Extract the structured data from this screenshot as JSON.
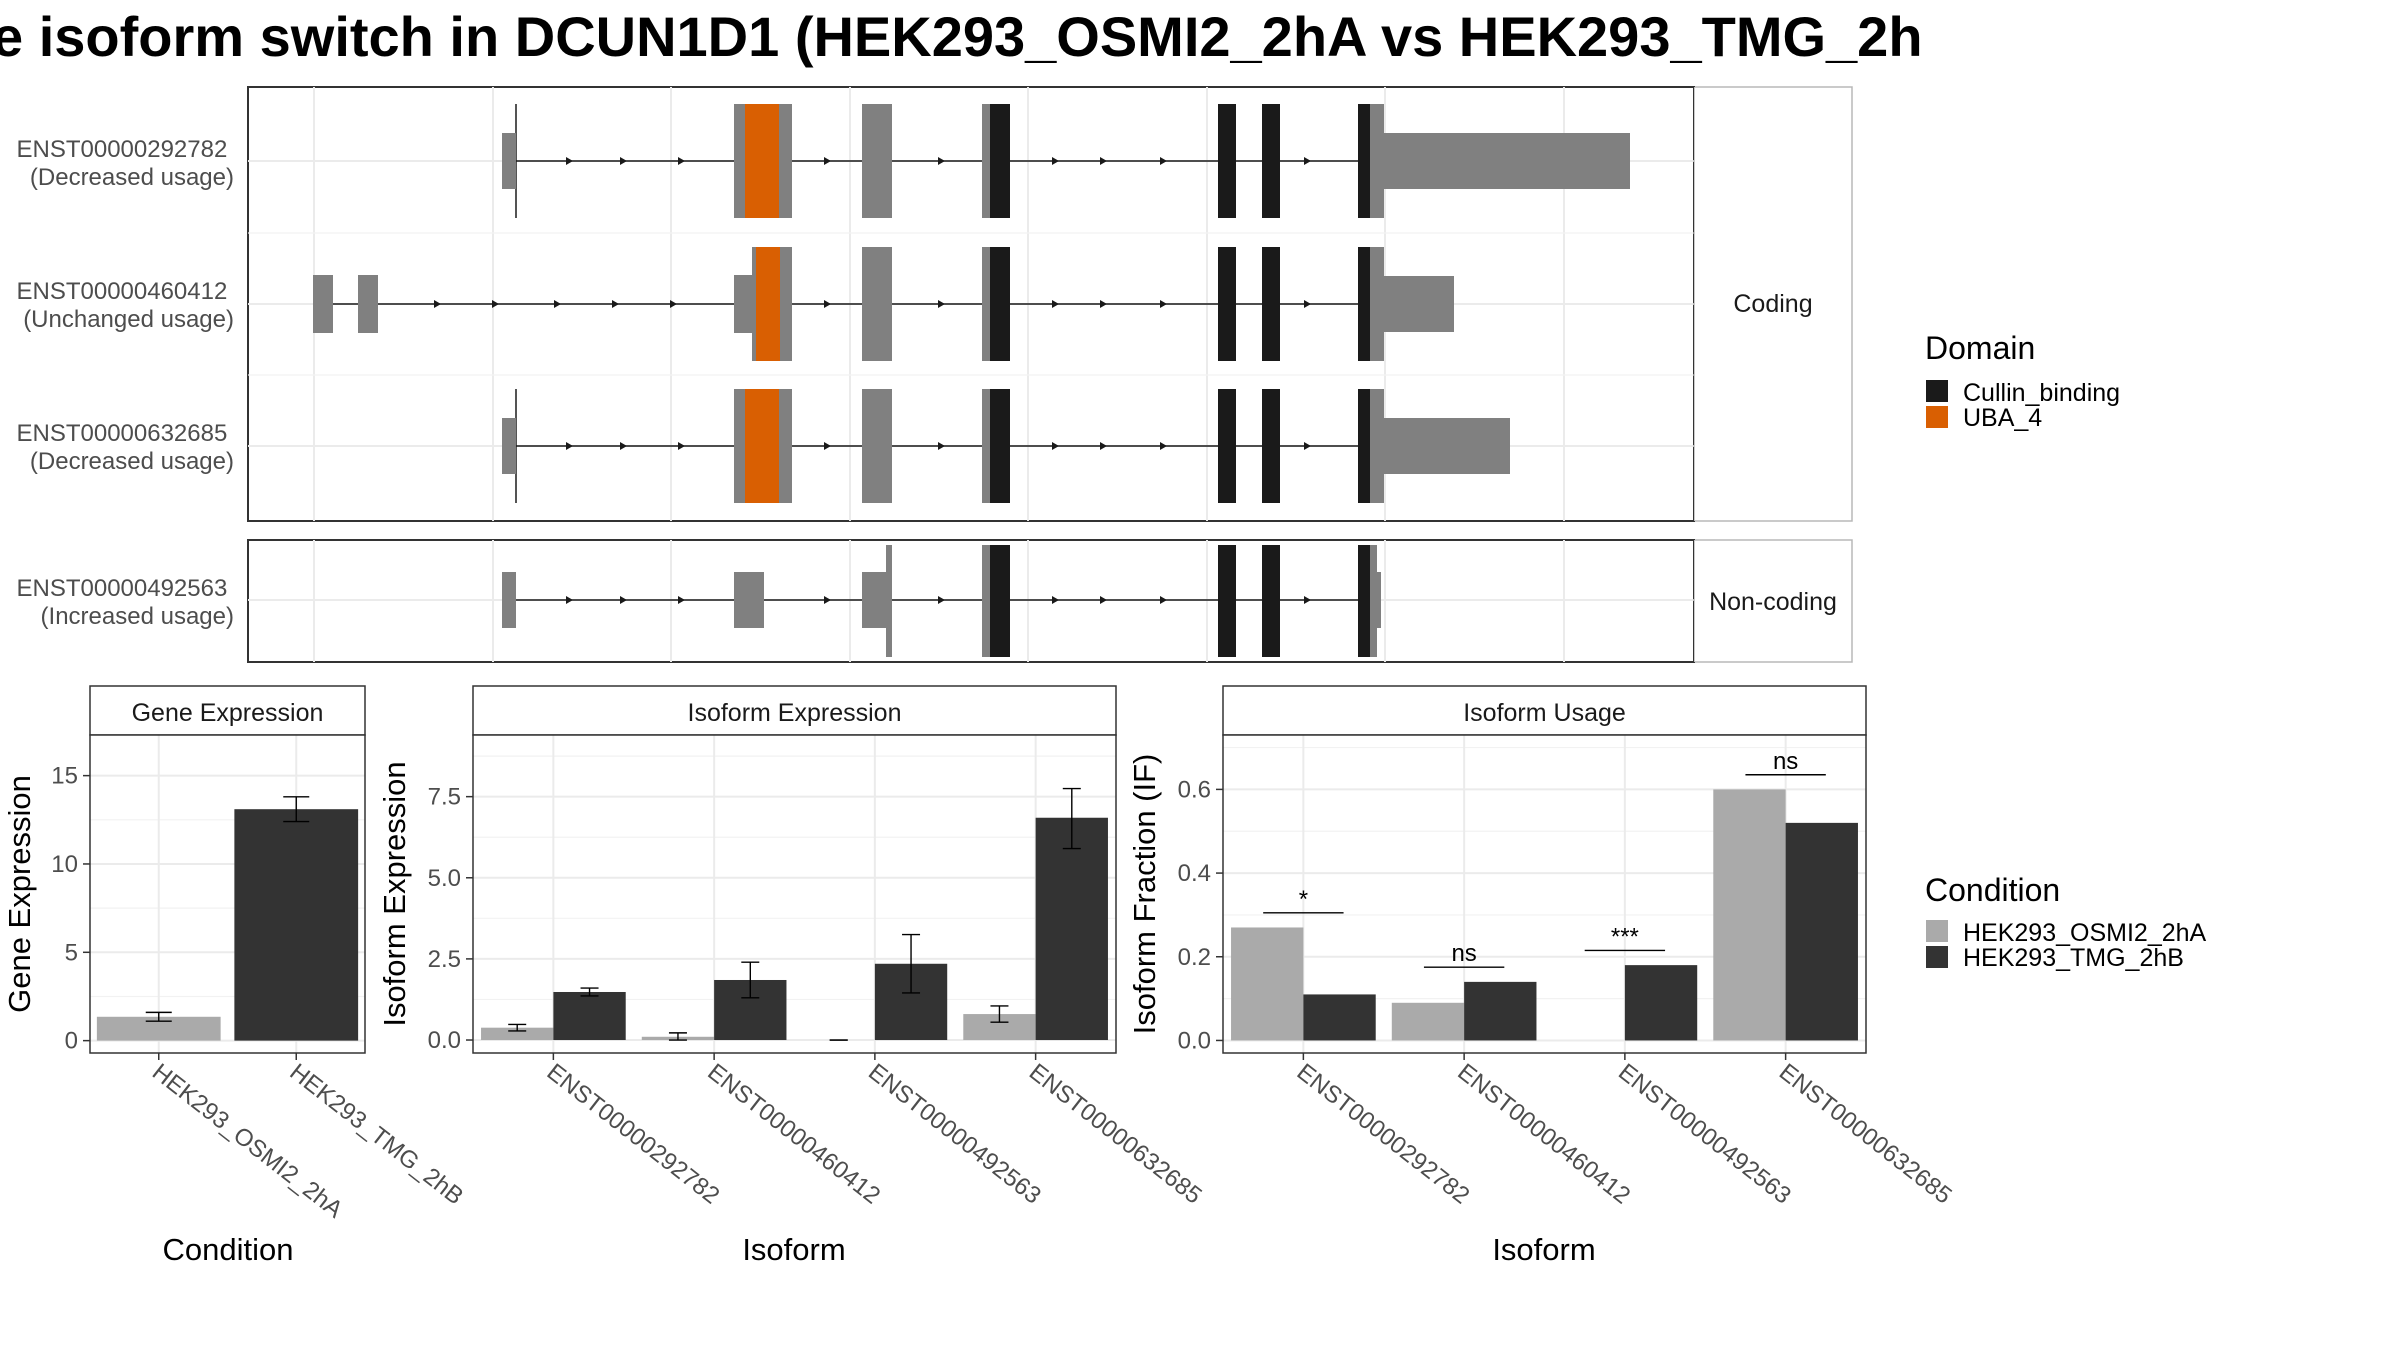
{
  "title": "e isoform switch in DCUN1D1 (HEK293_OSMI2_2hA vs HEK293_TMG_2h",
  "colors": {
    "exon": "#808080",
    "cullin": "#1a1a1a",
    "uba": "#d95f02",
    "cond_a": "#aaaaaa",
    "cond_b": "#333333",
    "grid": "#ebebeb",
    "panel_border": "#333333",
    "strip_bg": "#ffffff"
  },
  "structure": {
    "facets": [
      "Coding",
      "Non-coding"
    ],
    "transcripts": [
      {
        "id": "ENST00000292782",
        "usage": "(Decreased usage)",
        "facet": "Coding"
      },
      {
        "id": "ENST00000460412",
        "usage": "(Unchanged usage)",
        "facet": "Coding"
      },
      {
        "id": "ENST00000632685",
        "usage": "(Decreased usage)",
        "facet": "Coding"
      },
      {
        "id": "ENST00000492563",
        "usage": "(Increased usage)",
        "facet": "Non-coding"
      }
    ]
  },
  "legend_domain": {
    "title": "Domain",
    "items": [
      {
        "label": "Cullin_binding",
        "color": "#1a1a1a"
      },
      {
        "label": "UBA_4",
        "color": "#d95f02"
      }
    ]
  },
  "legend_condition": {
    "title": "Condition",
    "items": [
      {
        "label": "HEK293_OSMI2_2hA",
        "color": "#aaaaaa"
      },
      {
        "label": "HEK293_TMG_2hB",
        "color": "#333333"
      }
    ]
  },
  "chart_data": [
    {
      "type": "bar",
      "strip": "Gene Expression",
      "xlabel": "Condition",
      "ylabel": "Gene Expression",
      "categories": [
        "HEK293_OSMI2_2hA",
        "HEK293_TMG_2hB"
      ],
      "values": [
        1.35,
        13.1
      ],
      "errors": [
        [
          1.1,
          1.6
        ],
        [
          12.4,
          13.8
        ]
      ],
      "ylim": [
        -0.7,
        17.3
      ],
      "yticks": [
        0,
        5,
        10,
        15
      ],
      "ytick_labels": [
        "0",
        "5",
        "10",
        "15"
      ]
    },
    {
      "type": "bar",
      "strip": "Isoform Expression",
      "xlabel": "Isoform",
      "ylabel": "Isoform Expression",
      "categories": [
        "ENST00000292782",
        "ENST00000460412",
        "ENST00000492563",
        "ENST00000632685"
      ],
      "series": [
        {
          "name": "HEK293_OSMI2_2hA",
          "values": [
            0.38,
            0.1,
            0.0,
            0.8
          ],
          "errors": [
            [
              0.28,
              0.48
            ],
            [
              0.0,
              0.22
            ],
            [
              0.0,
              0.0
            ],
            [
              0.55,
              1.05
            ]
          ]
        },
        {
          "name": "HEK293_TMG_2hB",
          "values": [
            1.48,
            1.85,
            2.35,
            6.85
          ],
          "errors": [
            [
              1.36,
              1.6
            ],
            [
              1.3,
              2.4
            ],
            [
              1.45,
              3.25
            ],
            [
              5.9,
              7.75
            ]
          ]
        }
      ],
      "ylim": [
        -0.4,
        9.4
      ],
      "yticks": [
        0,
        2.5,
        5,
        7.5
      ],
      "ytick_labels": [
        "0.0",
        "2.5",
        "5.0",
        "7.5"
      ]
    },
    {
      "type": "bar",
      "strip": "Isoform Usage",
      "xlabel": "Isoform",
      "ylabel": "Isoform Fraction (IF)",
      "categories": [
        "ENST00000292782",
        "ENST00000460412",
        "ENST00000492563",
        "ENST00000632685"
      ],
      "series": [
        {
          "name": "HEK293_OSMI2_2hA",
          "values": [
            0.27,
            0.09,
            0.0,
            0.6
          ]
        },
        {
          "name": "HEK293_TMG_2hB",
          "values": [
            0.11,
            0.14,
            0.18,
            0.52
          ]
        }
      ],
      "significance": [
        "*",
        "ns",
        "***",
        "ns"
      ],
      "sig_y": [
        0.305,
        0.175,
        0.215,
        0.635
      ],
      "ylim": [
        -0.03,
        0.73
      ],
      "yticks": [
        0,
        0.2,
        0.4,
        0.6
      ],
      "ytick_labels": [
        "0.0",
        "0.2",
        "0.4",
        "0.6"
      ]
    }
  ]
}
